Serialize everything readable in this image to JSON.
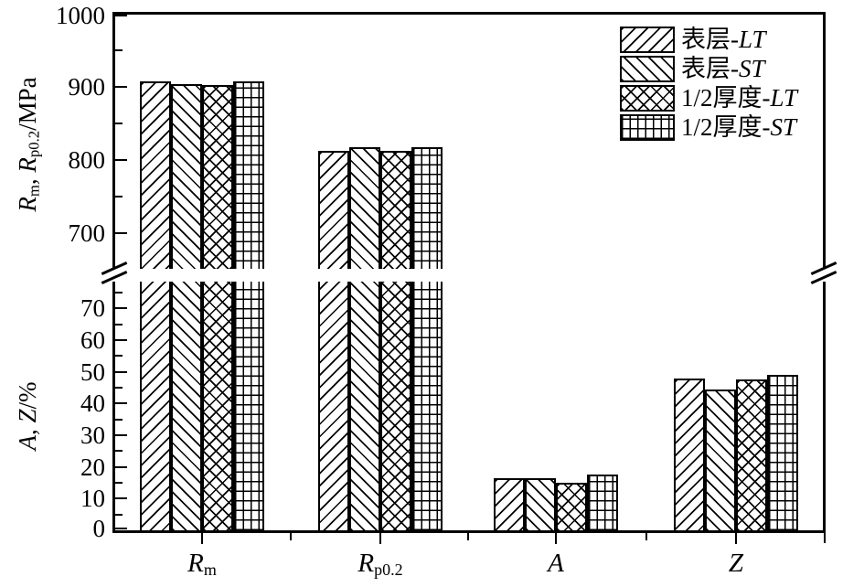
{
  "chart_data": {
    "type": "bar",
    "title": "",
    "background": "#ffffff",
    "foreground": "#000000",
    "grid": false,
    "legend_position": "top-right-inside",
    "axis_break": {
      "present": true,
      "between": [
        "bottom-panel-%",
        "top-panel-MPa"
      ]
    },
    "categories": [
      "Rm",
      "Rp0.2",
      "A",
      "Z"
    ],
    "category_labels": [
      {
        "text": "R",
        "italic": true,
        "sub": "m"
      },
      {
        "text": "R",
        "italic": true,
        "sub": "p0.2"
      },
      {
        "text": "A",
        "italic": true,
        "sub": ""
      },
      {
        "text": "Z",
        "italic": true,
        "sub": ""
      }
    ],
    "series": [
      {
        "name": "表层-LT",
        "label_prefix": "表层-",
        "label_italic": "LT",
        "pattern": "diagonal-forward",
        "values": [
          907,
          812,
          16.5,
          48
        ]
      },
      {
        "name": "表层-ST",
        "label_prefix": "表层-",
        "label_italic": "ST",
        "pattern": "diagonal-backward",
        "values": [
          904,
          817,
          16.5,
          44.5
        ]
      },
      {
        "name": "1/2厚度-LT",
        "label_prefix": "1/2厚度-",
        "label_italic": "LT",
        "pattern": "diagonal-crosshatch",
        "values": [
          903,
          812,
          15,
          47.5
        ]
      },
      {
        "name": "1/2厚度-ST",
        "label_prefix": "1/2厚度-",
        "label_italic": "ST",
        "pattern": "grid",
        "values": [
          907,
          818,
          17.5,
          49
        ]
      }
    ],
    "top_axis": {
      "label": "Rm, Rp0.2/MPa",
      "label_parts": [
        {
          "text": "R",
          "italic": true
        },
        {
          "text": "m",
          "sub": true
        },
        {
          "text": ", "
        },
        {
          "text": "R",
          "italic": true
        },
        {
          "text": "p0.2",
          "sub": true
        },
        {
          "text": "/MPa"
        }
      ],
      "unit": "MPa",
      "tick_values": [
        1000,
        900,
        800,
        700
      ],
      "tick_labels": [
        "1000",
        "900",
        "800",
        "700"
      ],
      "minor_tick_values": [
        950,
        850,
        750
      ],
      "range": [
        650,
        1002
      ]
    },
    "bottom_axis": {
      "label": "A, Z/%",
      "label_parts": [
        {
          "text": "A",
          "italic": true
        },
        {
          "text": ", "
        },
        {
          "text": "Z",
          "italic": true
        },
        {
          "text": "/%"
        }
      ],
      "unit": "%",
      "tick_values": [
        70,
        60,
        50,
        40,
        30,
        20,
        10,
        0
      ],
      "tick_labels": [
        "70",
        "60",
        "50",
        "40",
        "30",
        "20",
        "10",
        "0"
      ],
      "minor_tick_values": [
        75,
        65,
        55,
        45,
        35,
        25,
        15,
        5
      ],
      "range": [
        0,
        78.5
      ]
    }
  }
}
